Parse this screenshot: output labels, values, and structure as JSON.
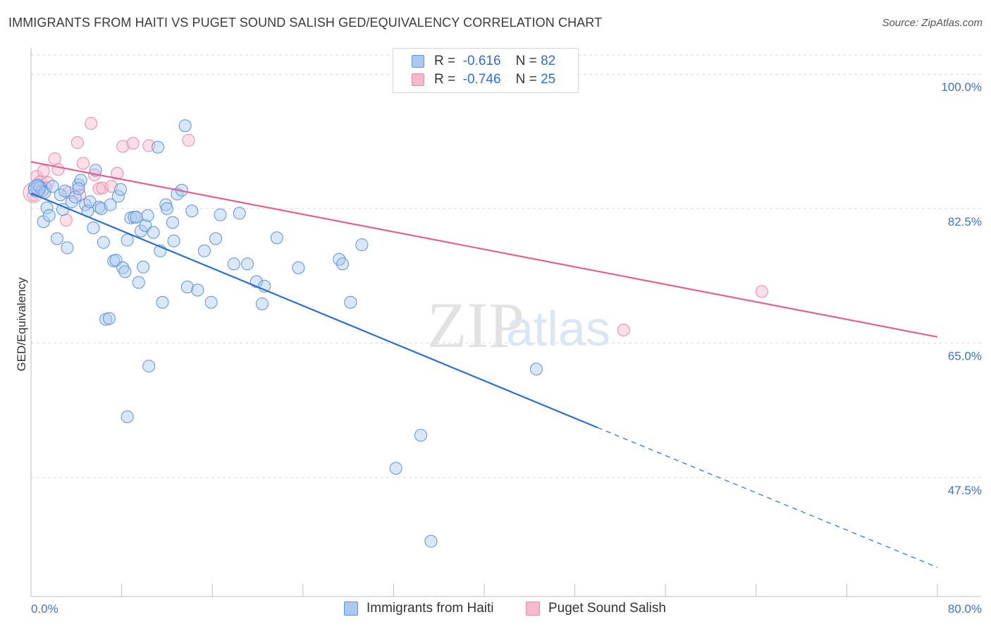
{
  "title": "IMMIGRANTS FROM HAITI VS PUGET SOUND SALISH GED/EQUIVALENCY CORRELATION CHART",
  "source": "Source: ZipAtlas.com",
  "watermark": {
    "zip": "ZIP",
    "atlas": "atlas"
  },
  "legend": {
    "rows": [
      {
        "r_label": "R =",
        "r_value": "-0.616",
        "n_label": "N =",
        "n_value": "82"
      },
      {
        "r_label": "R =",
        "r_value": "-0.746",
        "n_label": "N =",
        "n_value": "25"
      }
    ]
  },
  "bottom_legend": {
    "series1": "Immigrants from Haiti",
    "series2": "Puget Sound Salish"
  },
  "colors": {
    "haiti_fill": "#a9c9f2",
    "haiti_stroke": "#5b93dc",
    "haiti_line": "#2a6fd0",
    "salish_fill": "#f7b9cb",
    "salish_stroke": "#e98aa8",
    "salish_line": "#e0628d",
    "grid": "#d9d9d9",
    "tick_text": "#3b75c4"
  },
  "chart_data": {
    "type": "scatter",
    "title": "IMMIGRANTS FROM HAITI VS PUGET SOUND SALISH GED/EQUIVALENCY CORRELATION CHART",
    "xlabel": "",
    "ylabel": "GED/Equivalency",
    "xlim": [
      0,
      80
    ],
    "ylim": [
      32,
      102.5
    ],
    "x_tick_labels": [
      "0.0%",
      "80.0%"
    ],
    "y_ticks": [
      47.5,
      65.0,
      82.5,
      100.0
    ],
    "y_tick_labels": [
      "47.5%",
      "65.0%",
      "82.5%",
      "100.0%"
    ],
    "grid": true,
    "legend_position": "top-center",
    "series": [
      {
        "name": "Immigrants from Haiti",
        "r": -0.616,
        "n": 82,
        "trend": {
          "x": [
            0,
            50
          ],
          "y": [
            84.5,
            54.0
          ],
          "dashed_to": [
            80,
            35.8
          ]
        },
        "points": [
          [
            0.3,
            85.0
          ],
          [
            0.5,
            85.2
          ],
          [
            0.8,
            85.3
          ],
          [
            1.0,
            84.8
          ],
          [
            0.6,
            85.6
          ],
          [
            1.2,
            84.6
          ],
          [
            1.4,
            82.6
          ],
          [
            1.1,
            80.8
          ],
          [
            1.6,
            81.6
          ],
          [
            1.9,
            85.4
          ],
          [
            2.3,
            78.6
          ],
          [
            2.6,
            84.3
          ],
          [
            2.8,
            82.4
          ],
          [
            3.0,
            84.8
          ],
          [
            3.2,
            77.4
          ],
          [
            3.6,
            83.4
          ],
          [
            3.9,
            84.0
          ],
          [
            4.2,
            85.6
          ],
          [
            4.4,
            86.2
          ],
          [
            4.8,
            83.0
          ],
          [
            5.0,
            82.2
          ],
          [
            5.2,
            83.4
          ],
          [
            5.5,
            80.0
          ],
          [
            5.7,
            87.5
          ],
          [
            6.0,
            82.7
          ],
          [
            6.2,
            82.5
          ],
          [
            6.4,
            78.1
          ],
          [
            6.6,
            68.1
          ],
          [
            6.9,
            68.2
          ],
          [
            7.0,
            83.0
          ],
          [
            7.3,
            75.7
          ],
          [
            7.5,
            75.8
          ],
          [
            7.7,
            84.1
          ],
          [
            7.9,
            85.0
          ],
          [
            8.1,
            74.8
          ],
          [
            8.3,
            74.3
          ],
          [
            8.5,
            78.4
          ],
          [
            8.8,
            81.3
          ],
          [
            9.1,
            81.4
          ],
          [
            9.3,
            81.4
          ],
          [
            9.5,
            72.9
          ],
          [
            9.7,
            79.6
          ],
          [
            9.9,
            74.9
          ],
          [
            10.1,
            80.3
          ],
          [
            10.3,
            81.6
          ],
          [
            10.4,
            62.0
          ],
          [
            10.8,
            79.4
          ],
          [
            11.2,
            90.5
          ],
          [
            11.4,
            77.0
          ],
          [
            11.6,
            70.3
          ],
          [
            11.9,
            83.0
          ],
          [
            12.0,
            82.5
          ],
          [
            12.5,
            80.7
          ],
          [
            12.6,
            78.3
          ],
          [
            12.9,
            84.4
          ],
          [
            13.3,
            84.9
          ],
          [
            13.6,
            93.3
          ],
          [
            13.8,
            72.3
          ],
          [
            14.2,
            82.2
          ],
          [
            14.7,
            71.9
          ],
          [
            15.3,
            77.0
          ],
          [
            15.9,
            70.3
          ],
          [
            16.3,
            78.6
          ],
          [
            16.7,
            81.7
          ],
          [
            17.9,
            75.3
          ],
          [
            18.4,
            81.9
          ],
          [
            19.1,
            75.3
          ],
          [
            19.9,
            73.0
          ],
          [
            20.4,
            70.1
          ],
          [
            20.6,
            72.4
          ],
          [
            21.7,
            78.7
          ],
          [
            23.6,
            74.8
          ],
          [
            27.2,
            75.9
          ],
          [
            27.5,
            75.3
          ],
          [
            28.2,
            70.3
          ],
          [
            29.2,
            77.8
          ],
          [
            32.2,
            48.7
          ],
          [
            34.4,
            53.0
          ],
          [
            35.3,
            39.2
          ],
          [
            44.6,
            61.6
          ],
          [
            8.5,
            55.4
          ],
          [
            4.2,
            85.1
          ]
        ]
      },
      {
        "name": "Puget Sound Salish",
        "r": -0.746,
        "n": 25,
        "trend": {
          "x": [
            0,
            80
          ],
          "y": [
            88.6,
            65.8
          ]
        },
        "points": [
          [
            0.2,
            84.3
          ],
          [
            0.5,
            86.7
          ],
          [
            0.8,
            86.0
          ],
          [
            1.1,
            87.4
          ],
          [
            1.5,
            85.9
          ],
          [
            2.1,
            89.0
          ],
          [
            2.4,
            87.6
          ],
          [
            3.1,
            81.0
          ],
          [
            3.3,
            84.6
          ],
          [
            4.1,
            91.1
          ],
          [
            4.3,
            84.3
          ],
          [
            4.6,
            88.4
          ],
          [
            5.3,
            93.6
          ],
          [
            5.6,
            86.9
          ],
          [
            6.0,
            85.1
          ],
          [
            6.3,
            85.2
          ],
          [
            7.1,
            85.4
          ],
          [
            7.6,
            87.1
          ],
          [
            8.1,
            90.6
          ],
          [
            9.0,
            91.0
          ],
          [
            10.4,
            90.7
          ],
          [
            13.9,
            91.4
          ],
          [
            52.3,
            66.7
          ],
          [
            64.5,
            71.7
          ],
          [
            1.3,
            85.2
          ]
        ]
      }
    ]
  }
}
